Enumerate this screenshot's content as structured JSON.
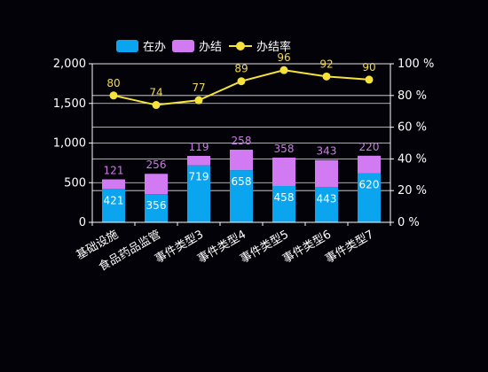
{
  "colors": {
    "background": "#020208",
    "in_progress": "#0ba4ee",
    "completed": "#d27af2",
    "rate": "#f5e23a",
    "rate_label": "#f0d94a",
    "completed_label": "#d07ae8",
    "axis": "#ffffff",
    "grid": "#ffffff"
  },
  "chart_data": {
    "type": "bar",
    "stacked": true,
    "title": "",
    "xlabel": "",
    "ylabel": "",
    "categories": [
      "基础设施",
      "食品药品监管",
      "事件类型3",
      "事件类型4",
      "事件类型5",
      "事件类型6",
      "事件类型7"
    ],
    "series": [
      {
        "name": "在办",
        "type": "bar",
        "axis": "left",
        "values": [
          421,
          356,
          719,
          658,
          458,
          443,
          620
        ]
      },
      {
        "name": "办结",
        "type": "bar",
        "axis": "left",
        "values": [
          121,
          256,
          119,
          258,
          358,
          343,
          220
        ]
      },
      {
        "name": "办结率",
        "type": "line",
        "axis": "right",
        "values": [
          80,
          74,
          77,
          89,
          96,
          92,
          90
        ]
      }
    ],
    "ylim": [
      0,
      2000
    ],
    "yticks": [
      0,
      500,
      1000,
      1500,
      2000
    ],
    "ytick_labels": [
      "0",
      "500",
      "1,000",
      "1,500",
      "2,000"
    ],
    "y2lim": [
      0,
      100
    ],
    "y2ticks": [
      0,
      20,
      40,
      60,
      80,
      100
    ],
    "y2tick_labels": [
      "0 %",
      "20 %",
      "40 %",
      "60 %",
      "80 %",
      "100 %"
    ],
    "legend_position": "top-left",
    "grid": true,
    "x_tick_rotation": -30
  }
}
